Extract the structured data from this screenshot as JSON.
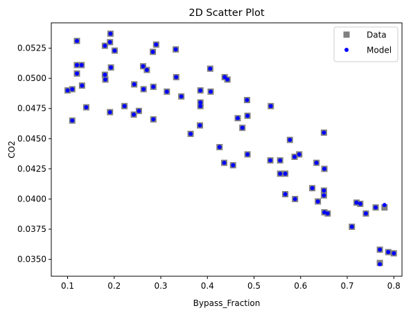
{
  "chart_data": {
    "type": "scatter",
    "title": "2D Scatter Plot",
    "xlabel": "Bypass_Fraction",
    "ylabel": "CO2",
    "xlim": [
      0.065,
      0.8175
    ],
    "ylim": [
      0.0336,
      0.0546
    ],
    "xticks": [
      0.1,
      0.2,
      0.3,
      0.4,
      0.5,
      0.6,
      0.7,
      0.8
    ],
    "xtick_labels": [
      "0.1",
      "0.2",
      "0.3",
      "0.4",
      "0.5",
      "0.6",
      "0.7",
      "0.8"
    ],
    "yticks": [
      0.035,
      0.0375,
      0.04,
      0.0425,
      0.045,
      0.0475,
      0.05,
      0.0525
    ],
    "ytick_labels": [
      "0.0350",
      "0.0375",
      "0.0400",
      "0.0425",
      "0.0450",
      "0.0475",
      "0.0500",
      "0.0525"
    ],
    "grid": false,
    "legend_position": "top-right",
    "series": [
      {
        "name": "Data",
        "marker": "square",
        "color": "#808080",
        "x": [
          0.12,
          0.192,
          0.18,
          0.191,
          0.201,
          0.29,
          0.283,
          0.332,
          0.12,
          0.13,
          0.193,
          0.12,
          0.262,
          0.27,
          0.18,
          0.181,
          0.406,
          0.333,
          0.437,
          0.443,
          0.1,
          0.11,
          0.131,
          0.243,
          0.263,
          0.284,
          0.313,
          0.385,
          0.407,
          0.344,
          0.485,
          0.14,
          0.191,
          0.222,
          0.253,
          0.242,
          0.385,
          0.536,
          0.385,
          0.486,
          0.465,
          0.11,
          0.284,
          0.65,
          0.364,
          0.384,
          0.475,
          0.577,
          0.426,
          0.486,
          0.436,
          0.455,
          0.535,
          0.556,
          0.597,
          0.587,
          0.634,
          0.651,
          0.556,
          0.567,
          0.625,
          0.65,
          0.65,
          0.567,
          0.588,
          0.637,
          0.72,
          0.728,
          0.761,
          0.78,
          0.651,
          0.658,
          0.74,
          0.71,
          0.77,
          0.788,
          0.8,
          0.77
        ],
        "y": [
          0.0531,
          0.0537,
          0.0527,
          0.053,
          0.0523,
          0.0528,
          0.0522,
          0.0524,
          0.0504,
          0.0511,
          0.0509,
          0.0511,
          0.051,
          0.0507,
          0.0503,
          0.0499,
          0.0508,
          0.0501,
          0.0501,
          0.0499,
          0.049,
          0.0491,
          0.0494,
          0.0495,
          0.0491,
          0.0493,
          0.0489,
          0.049,
          0.0489,
          0.0485,
          0.0482,
          0.0476,
          0.0472,
          0.0477,
          0.0473,
          0.047,
          0.048,
          0.0477,
          0.0477,
          0.0469,
          0.0467,
          0.0465,
          0.0466,
          0.0455,
          0.0454,
          0.0461,
          0.0459,
          0.0449,
          0.0443,
          0.0437,
          0.043,
          0.0428,
          0.0432,
          0.0432,
          0.0437,
          0.0435,
          0.043,
          0.0425,
          0.0421,
          0.0421,
          0.0409,
          0.0407,
          0.0403,
          0.0404,
          0.04,
          0.0398,
          0.0397,
          0.0396,
          0.0393,
          0.0393,
          0.0389,
          0.0388,
          0.0388,
          0.0377,
          0.0358,
          0.0356,
          0.0355,
          0.0347
        ]
      },
      {
        "name": "Model",
        "marker": "circle",
        "color": "#0000ff",
        "x": [
          0.12,
          0.192,
          0.18,
          0.191,
          0.201,
          0.29,
          0.283,
          0.332,
          0.12,
          0.13,
          0.193,
          0.12,
          0.262,
          0.27,
          0.18,
          0.181,
          0.406,
          0.333,
          0.437,
          0.443,
          0.1,
          0.11,
          0.131,
          0.243,
          0.263,
          0.284,
          0.313,
          0.385,
          0.407,
          0.344,
          0.485,
          0.14,
          0.191,
          0.222,
          0.253,
          0.242,
          0.385,
          0.536,
          0.385,
          0.486,
          0.465,
          0.11,
          0.284,
          0.65,
          0.364,
          0.384,
          0.475,
          0.577,
          0.426,
          0.486,
          0.436,
          0.455,
          0.535,
          0.556,
          0.597,
          0.587,
          0.634,
          0.651,
          0.556,
          0.567,
          0.625,
          0.65,
          0.65,
          0.567,
          0.588,
          0.637,
          0.72,
          0.728,
          0.761,
          0.78,
          0.651,
          0.658,
          0.74,
          0.71,
          0.77,
          0.788,
          0.8,
          0.77
        ],
        "y": [
          0.0531,
          0.0537,
          0.0527,
          0.053,
          0.0523,
          0.0528,
          0.0522,
          0.0524,
          0.0504,
          0.0511,
          0.0509,
          0.0511,
          0.051,
          0.0507,
          0.0503,
          0.0499,
          0.0508,
          0.0501,
          0.0501,
          0.0499,
          0.049,
          0.0491,
          0.0494,
          0.0495,
          0.0491,
          0.0493,
          0.0489,
          0.049,
          0.0489,
          0.0485,
          0.0482,
          0.0476,
          0.0472,
          0.0477,
          0.0473,
          0.047,
          0.048,
          0.0477,
          0.0477,
          0.0469,
          0.0467,
          0.0465,
          0.0466,
          0.0455,
          0.0454,
          0.0461,
          0.0459,
          0.0449,
          0.0443,
          0.0437,
          0.043,
          0.0428,
          0.0432,
          0.0432,
          0.0437,
          0.0435,
          0.043,
          0.0425,
          0.0421,
          0.0421,
          0.0409,
          0.0407,
          0.0403,
          0.0404,
          0.04,
          0.0398,
          0.0397,
          0.0396,
          0.0393,
          0.0395,
          0.0389,
          0.0388,
          0.0388,
          0.0377,
          0.0358,
          0.0356,
          0.0355,
          0.0346
        ]
      }
    ]
  }
}
